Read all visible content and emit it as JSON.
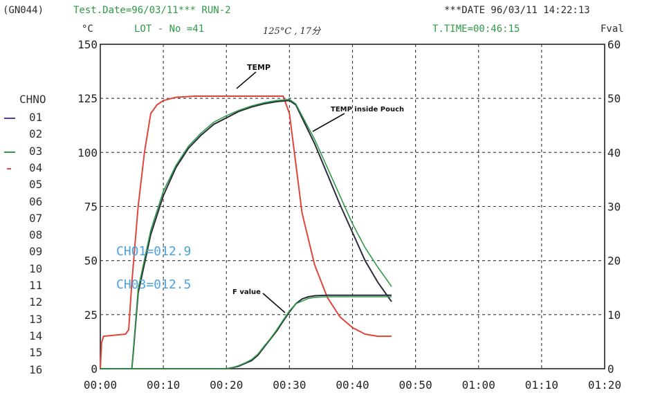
{
  "header": {
    "left": "(GN044)",
    "test_date": "Test.Date=96/03/11*** RUN-2",
    "date_time": "***DATE 96/03/11 14:22:13",
    "unit_left": "°C",
    "lot": "LOT - No =41",
    "handwritten": "125°C , 17分",
    "t_time": "T.TIME=00:46:15",
    "unit_right": "Fval"
  },
  "channels": {
    "header": "CHNO",
    "items": [
      "01",
      "02",
      "03",
      "04",
      "05",
      "06",
      "07",
      "08",
      "09",
      "10",
      "11",
      "12",
      "13",
      "14",
      "15",
      "16"
    ],
    "swatches": {
      "01": "#5a3a8a",
      "03": "#2e9a46",
      "04": "#e0443a"
    }
  },
  "notes": {
    "ch01": "CH01=012.9",
    "ch03": "CH03=012.5"
  },
  "colors": {
    "temp": "#e0443a",
    "pouch": "#2a2a3a",
    "ch03": "#2e9a46",
    "grid": "#333333",
    "note": "#4aa3e0"
  },
  "chart_data": {
    "type": "line",
    "xlabel": "",
    "ylabel_left": "°C",
    "ylabel_right": "Fval",
    "x_range_min": [
      0,
      80
    ],
    "y_range": [
      0,
      150
    ],
    "y2_range": [
      0,
      60
    ],
    "x_ticks": [
      "00:00",
      "00:10",
      "00:20",
      "00:30",
      "00:40",
      "00:50",
      "01:00",
      "01:10",
      "01:20"
    ],
    "y_ticks": [
      "0",
      "25",
      "50",
      "75",
      "100",
      "125",
      "150"
    ],
    "y2_ticks": [
      "0",
      "10",
      "20",
      "30",
      "40",
      "50",
      "60"
    ],
    "grid": true,
    "annotations": [
      "TEMP",
      "TEMP inside Pouch",
      "F value"
    ],
    "series": [
      {
        "name": "04",
        "x": [
          0,
          0.2,
          0.5,
          4,
          4.5,
          5,
          6,
          7,
          8,
          9,
          10,
          12,
          15,
          20,
          25,
          29,
          30,
          32,
          34,
          36,
          38,
          40,
          42,
          44,
          46.2
        ],
        "y": [
          0,
          12,
          15,
          16,
          18,
          40,
          75,
          100,
          118,
          122,
          124,
          125.5,
          126,
          126,
          126,
          126,
          118,
          72,
          48,
          33,
          24,
          19,
          16,
          15,
          15
        ]
      },
      {
        "name": "01",
        "x": [
          5,
          5.3,
          6,
          8,
          10,
          12,
          14,
          16,
          18,
          20,
          22,
          24,
          26,
          28,
          30,
          31,
          32,
          34,
          36,
          38,
          40,
          42,
          44,
          46.2
        ],
        "y": [
          0,
          10,
          35,
          62,
          80,
          93,
          102,
          108,
          113,
          116,
          119,
          121,
          122.5,
          123.5,
          124,
          122,
          116,
          104,
          90,
          76,
          63,
          50,
          40,
          31
        ]
      },
      {
        "name": "03",
        "x": [
          5,
          5.3,
          6,
          8,
          10,
          12,
          14,
          16,
          18,
          20,
          22,
          24,
          26,
          28,
          30,
          31,
          32,
          34,
          36,
          38,
          40,
          42,
          44,
          46.2
        ],
        "y": [
          0,
          11,
          37,
          64,
          82,
          94,
          103,
          109,
          114,
          117,
          119.5,
          121.5,
          123,
          124,
          124.5,
          122.5,
          117,
          106,
          93,
          80,
          67,
          56,
          47,
          38
        ]
      },
      {
        "name": "F value 01",
        "x": [
          0,
          10,
          20,
          21,
          22,
          23,
          24,
          25,
          26,
          27,
          28,
          29,
          30,
          31,
          32,
          33,
          34,
          36,
          38,
          40,
          42,
          44,
          46.2
        ],
        "y": [
          0,
          0,
          0,
          0.2,
          0.5,
          1,
          1.5,
          2.5,
          4,
          5.5,
          7,
          8.8,
          10.5,
          12,
          12.9,
          13.3,
          13.5,
          13.6,
          13.6,
          13.6,
          13.6,
          13.6,
          13.6
        ]
      },
      {
        "name": "F value 03",
        "x": [
          0,
          10,
          20,
          21,
          22,
          23,
          24,
          25,
          26,
          27,
          28,
          29,
          30,
          31,
          32,
          33,
          34,
          36,
          38,
          40,
          42,
          44,
          46.2
        ],
        "y": [
          0,
          0,
          0,
          0.2,
          0.6,
          1.1,
          1.7,
          2.7,
          4.2,
          5.6,
          7.2,
          9,
          10.7,
          12,
          12.5,
          13,
          13.2,
          13.3,
          13.3,
          13.3,
          13.3,
          13.3,
          13.3
        ]
      }
    ]
  }
}
